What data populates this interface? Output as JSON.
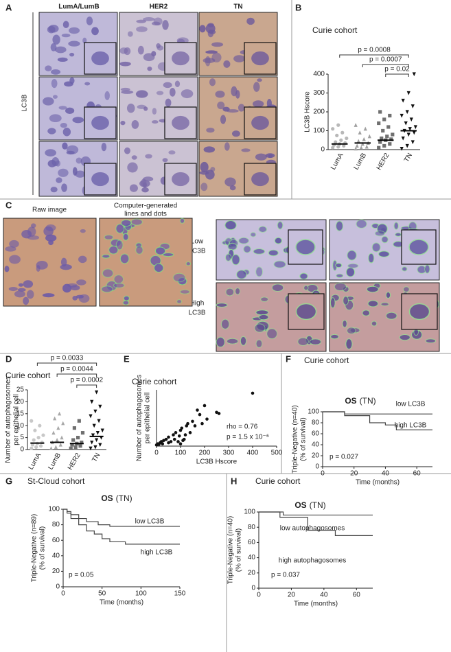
{
  "figure": {
    "A": {
      "panel": "A",
      "columns": [
        "LumA/LumB",
        "HER2",
        "TN"
      ],
      "row_label": "LC3B"
    },
    "C": {
      "panel": "C",
      "raw_label": "Raw image",
      "generated_label": [
        "Computer-generated",
        "lines and dots"
      ],
      "low_label": [
        "Low",
        "LC3B"
      ],
      "high_label": [
        "High",
        "LC3B"
      ]
    }
  },
  "chart_data": [
    {
      "type": "strip",
      "panel": "B",
      "title": "Curie cohort",
      "y_label": [
        "LC3B Hscore"
      ],
      "categories": [
        "LumA",
        "LumB",
        "HER2",
        "TN"
      ],
      "groups": [
        {
          "color": "#b8b8b8",
          "marker": "circle",
          "values": [
            10,
            15,
            20,
            25,
            30,
            35,
            40,
            50,
            60,
            75,
            90,
            110,
            130
          ],
          "median": 30
        },
        {
          "color": "#a0a0a0",
          "marker": "triangle",
          "values": [
            5,
            10,
            15,
            20,
            30,
            35,
            45,
            55,
            70,
            90,
            110,
            130
          ],
          "median": 35
        },
        {
          "color": "#707070",
          "marker": "square",
          "values": [
            10,
            20,
            30,
            40,
            50,
            55,
            60,
            70,
            80,
            100,
            120,
            140,
            160,
            180,
            200
          ],
          "median": 50
        },
        {
          "color": "#111111",
          "marker": "triangle-down",
          "values": [
            5,
            20,
            40,
            60,
            80,
            90,
            100,
            110,
            120,
            140,
            160,
            180,
            200,
            230,
            260,
            300,
            400
          ],
          "median": 100
        }
      ],
      "ylim": [
        0,
        400
      ],
      "yticks": [
        0,
        100,
        200,
        300,
        400
      ],
      "comparisons": [
        {
          "pair": [
            0,
            3
          ],
          "label": "p = 0.0008"
        },
        {
          "pair": [
            1,
            3
          ],
          "label": "p = 0.0007"
        },
        {
          "pair": [
            2,
            3
          ],
          "label": "p = 0.02"
        }
      ]
    },
    {
      "type": "strip",
      "panel": "D",
      "title": "Curie cohort",
      "y_label": [
        "Number of autophagosomes",
        "per epithelial cell"
      ],
      "categories": [
        "LumA",
        "LumB",
        "HER2",
        "TN"
      ],
      "groups": [
        {
          "color": "#c8c8c8",
          "marker": "circle",
          "values": [
            0.5,
            1,
            1.5,
            2,
            2.5,
            3,
            4,
            5,
            6,
            8,
            10,
            12
          ],
          "median": 2.7
        },
        {
          "color": "#a8a8a8",
          "marker": "triangle",
          "values": [
            0.5,
            1,
            2,
            3,
            4,
            5,
            7,
            9,
            11,
            13,
            15
          ],
          "median": 3
        },
        {
          "color": "#707070",
          "marker": "square",
          "values": [
            0.5,
            1,
            1.5,
            2,
            2.5,
            3,
            4,
            5,
            7,
            9,
            12
          ],
          "median": 2.5
        },
        {
          "color": "#111111",
          "marker": "triangle-down",
          "values": [
            0.5,
            1,
            2,
            3,
            4,
            5,
            6,
            7,
            8,
            10,
            12,
            14,
            16,
            18,
            20,
            24
          ],
          "median": 5.5
        }
      ],
      "ylim": [
        0,
        25
      ],
      "yticks": [
        0,
        5,
        10,
        15,
        20,
        25
      ],
      "comparisons": [
        {
          "pair": [
            0,
            3
          ],
          "label": "p = 0.0033"
        },
        {
          "pair": [
            1,
            3
          ],
          "label": "p = 0.0044"
        },
        {
          "pair": [
            2,
            3
          ],
          "label": "p = 0.0002"
        }
      ]
    },
    {
      "type": "scatter",
      "panel": "E",
      "title": "Curie cohort",
      "y_label": [
        "Number of autophagosomes",
        "per epithelial cell"
      ],
      "x_label": "LC3B Hscore",
      "x": [
        0,
        5,
        10,
        15,
        20,
        25,
        30,
        40,
        50,
        50,
        60,
        70,
        75,
        80,
        90,
        95,
        100,
        100,
        105,
        110,
        115,
        120,
        125,
        130,
        140,
        150,
        160,
        170,
        180,
        190,
        200,
        210,
        250,
        260,
        400
      ],
      "y": [
        0.5,
        1,
        0.8,
        1.5,
        2,
        1,
        2.5,
        3,
        1.5,
        4,
        2,
        5,
        3,
        6,
        2,
        4.5,
        1,
        7,
        8,
        2.5,
        3,
        5,
        9,
        10,
        6,
        11,
        9,
        16,
        14,
        10,
        18,
        12,
        15,
        14.5,
        23.5
      ],
      "color": "#111111",
      "xlim": [
        0,
        500
      ],
      "xticks": [
        0,
        100,
        200,
        300,
        400,
        500
      ],
      "ylim": [
        0,
        25
      ],
      "annotations": [
        "rho = 0.76",
        "p = 1.5 x 10⁻⁶"
      ]
    },
    {
      "type": "survival",
      "panel": "F",
      "title": "Curie cohort",
      "plot_title": [
        "OS",
        "(TN)"
      ],
      "y_label": [
        "Triple-Negative (n=40)",
        "(% of survival)"
      ],
      "x_label": "Time (months)",
      "series": [
        {
          "name": "low LC3B",
          "color": "#444444",
          "x": [
            0,
            14,
            70
          ],
          "values": [
            100,
            96,
            96
          ]
        },
        {
          "name": "high LC3B",
          "color": "#444444",
          "x": [
            0,
            14,
            30,
            40,
            47,
            70
          ],
          "values": [
            100,
            93,
            80,
            76,
            67,
            67
          ]
        }
      ],
      "xlim": [
        0,
        70
      ],
      "xticks": [
        0,
        20,
        40,
        60
      ],
      "ylim": [
        0,
        100
      ],
      "yticks": [
        0,
        20,
        40,
        60,
        80,
        100
      ],
      "annotation": "p = 0.027"
    },
    {
      "type": "survival",
      "panel": "G",
      "title": "St-Cloud cohort",
      "plot_title": [
        "OS",
        "(TN)"
      ],
      "y_label": [
        "Triple-Negative (n=89)",
        "(% of survival)"
      ],
      "x_label": "Time (months)",
      "series": [
        {
          "name": "low LC3B",
          "color": "#444444",
          "x": [
            0,
            5,
            10,
            20,
            30,
            45,
            60,
            150
          ],
          "values": [
            100,
            97,
            93,
            88,
            84,
            80,
            78,
            78
          ]
        },
        {
          "name": "high LC3B",
          "color": "#444444",
          "x": [
            0,
            5,
            10,
            20,
            30,
            40,
            50,
            60,
            80,
            150
          ],
          "values": [
            100,
            95,
            88,
            80,
            72,
            68,
            62,
            58,
            55,
            55
          ]
        }
      ],
      "xlim": [
        0,
        150
      ],
      "xticks": [
        0,
        50,
        100,
        150
      ],
      "ylim": [
        0,
        100
      ],
      "yticks": [
        0,
        20,
        40,
        60,
        80,
        100
      ],
      "annotation": "p = 0.05"
    },
    {
      "type": "survival",
      "panel": "H",
      "title": "Curie cohort",
      "plot_title": [
        "OS",
        "(TN)"
      ],
      "y_label": [
        "Triple-Negative (n=40)",
        "(% of survival)"
      ],
      "x_label": "Time (months)",
      "series": [
        {
          "name": "low autophagosomes",
          "color": "#444444",
          "x": [
            0,
            15,
            70
          ],
          "values": [
            100,
            96,
            96
          ]
        },
        {
          "name": "high autophagosomes",
          "color": "#444444",
          "x": [
            0,
            13,
            30,
            47,
            70
          ],
          "values": [
            100,
            93,
            76,
            69,
            69
          ]
        }
      ],
      "xlim": [
        0,
        70
      ],
      "xticks": [
        0,
        20,
        40,
        60
      ],
      "ylim": [
        0,
        100
      ],
      "yticks": [
        0,
        20,
        40,
        60,
        80,
        100
      ],
      "annotation": "p = 0.037"
    }
  ]
}
